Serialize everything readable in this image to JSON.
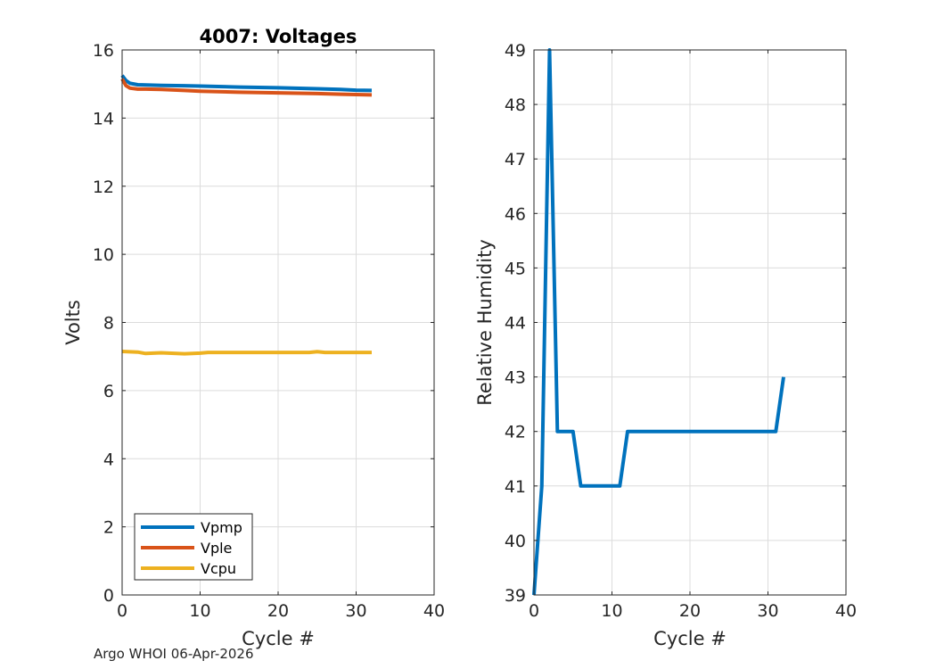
{
  "footer": "Argo WHOI 06-Apr-2026",
  "colors": {
    "vpmp": "#0072BD",
    "vple": "#D95319",
    "vcpu": "#EDB120"
  },
  "chart_data": [
    {
      "type": "line",
      "title": "4007: Voltages",
      "xlabel": "Cycle #",
      "ylabel": "Volts",
      "xlim": [
        0,
        40
      ],
      "ylim": [
        0,
        16
      ],
      "xticks": [
        0,
        10,
        20,
        30,
        40
      ],
      "yticks": [
        0,
        2,
        4,
        6,
        8,
        10,
        12,
        14,
        16
      ],
      "grid": true,
      "legend": "bottom-left",
      "series": [
        {
          "name": "Vpmp",
          "color": "#0072BD",
          "x": [
            0,
            0.5,
            1,
            2,
            3,
            5,
            8,
            10,
            15,
            20,
            25,
            28,
            30,
            32
          ],
          "values": [
            15.25,
            15.1,
            15.02,
            14.98,
            14.97,
            14.96,
            14.95,
            14.94,
            14.91,
            14.89,
            14.86,
            14.84,
            14.82,
            14.81
          ]
        },
        {
          "name": "Vple",
          "color": "#D95319",
          "x": [
            0,
            0.5,
            1,
            2,
            3,
            5,
            8,
            10,
            15,
            20,
            25,
            28,
            30,
            32
          ],
          "values": [
            15.15,
            14.95,
            14.88,
            14.85,
            14.85,
            14.84,
            14.81,
            14.79,
            14.76,
            14.74,
            14.72,
            14.7,
            14.69,
            14.68
          ]
        },
        {
          "name": "Vcpu",
          "color": "#EDB120",
          "x": [
            0,
            2,
            3,
            5,
            8,
            10,
            11,
            15,
            20,
            24,
            25,
            26,
            30,
            32
          ],
          "values": [
            7.15,
            7.13,
            7.09,
            7.11,
            7.08,
            7.1,
            7.12,
            7.12,
            7.12,
            7.12,
            7.14,
            7.12,
            7.12,
            7.12
          ]
        }
      ]
    },
    {
      "type": "line",
      "title": "",
      "xlabel": "Cycle #",
      "ylabel": "Relative Humidity",
      "xlim": [
        0,
        40
      ],
      "ylim": [
        39,
        49
      ],
      "xticks": [
        0,
        10,
        20,
        30,
        40
      ],
      "yticks": [
        39,
        40,
        41,
        42,
        43,
        44,
        45,
        46,
        47,
        48,
        49
      ],
      "grid": true,
      "series": [
        {
          "name": "RH",
          "color": "#0072BD",
          "x": [
            0,
            1,
            2,
            3,
            4,
            5,
            6,
            7,
            8,
            9,
            10,
            11,
            12,
            13,
            20,
            25,
            30,
            31,
            32
          ],
          "values": [
            39,
            41,
            49,
            42,
            42,
            42,
            41,
            41,
            41,
            41,
            41,
            41,
            42,
            42,
            42,
            42,
            42,
            42,
            43
          ]
        }
      ]
    }
  ]
}
